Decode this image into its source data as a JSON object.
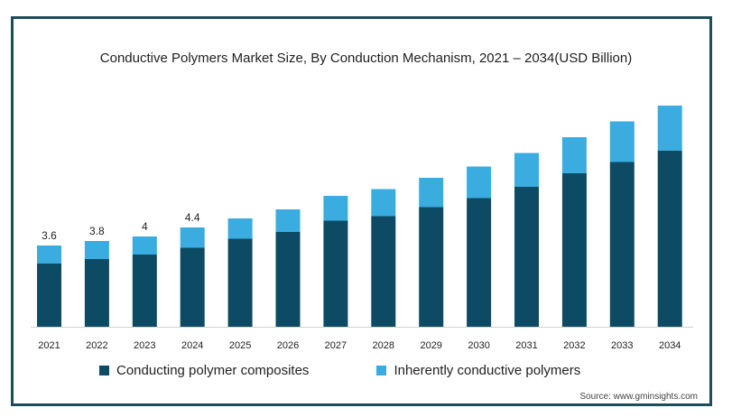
{
  "chart_data": {
    "type": "bar",
    "stacked": true,
    "title": "Conductive Polymers Market Size, By Conduction Mechanism, 2021 – 2034(USD Billion)",
    "xlabel": "",
    "ylabel": "",
    "categories": [
      "2021",
      "2022",
      "2023",
      "2024",
      "2025",
      "2026",
      "2027",
      "2028",
      "2029",
      "2030",
      "2031",
      "2032",
      "2033",
      "2034"
    ],
    "series": [
      {
        "name": "Conducting polymer composites",
        "color": "#0d4a63",
        "values": [
          2.8,
          3.0,
          3.2,
          3.5,
          3.9,
          4.2,
          4.7,
          4.9,
          5.3,
          5.7,
          6.2,
          6.8,
          7.3,
          7.8
        ]
      },
      {
        "name": "Inherently conductive polymers",
        "color": "#3aacdf",
        "values": [
          0.8,
          0.8,
          0.8,
          0.9,
          0.9,
          1.0,
          1.1,
          1.2,
          1.3,
          1.4,
          1.5,
          1.6,
          1.8,
          2.0
        ]
      }
    ],
    "data_labels": [
      "3.6",
      "3.8",
      "4",
      "4.4",
      "",
      "",
      "",
      "",
      "",
      "",
      "",
      "",
      "",
      ""
    ],
    "ylim": [
      0,
      10
    ],
    "grid": false,
    "legend_position": "bottom"
  },
  "source": "Source: www.gminsights.com"
}
